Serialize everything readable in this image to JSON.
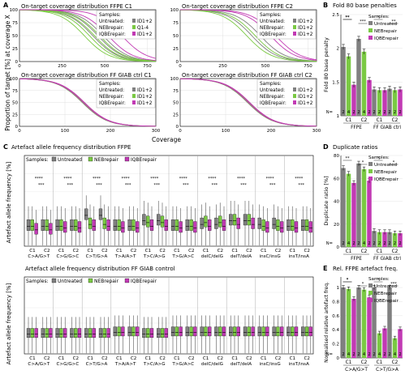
{
  "colors": {
    "untreated": "#808080",
    "nebrepair": "#7ac943",
    "iqberepair": "#c23ab4",
    "black": "#000000"
  },
  "panels": {
    "A": {
      "letter": "A",
      "ylabel": "Proportion of target [%] at coverage X",
      "xlabel": "Coverage",
      "samples_label": "Samples:",
      "legend_labels": [
        "Untreated:",
        "NEBrepair:",
        "IQBErepair:"
      ],
      "subplots": [
        {
          "title": "On-target coverage distribution FFPE C1",
          "xticks": [
            "0",
            "250",
            "500",
            "750"
          ],
          "xmax": 800,
          "legend_values": [
            "ID1+2",
            "Q1-4",
            "ID1+2"
          ],
          "series": [
            {
              "name": "Untreated",
              "color_key": "untreated",
              "median_coverage": [
                430,
                460,
                490
              ]
            },
            {
              "name": "NEBrepair",
              "color_key": "nebrepair",
              "median_coverage": [
                380,
                410,
                440,
                470
              ]
            },
            {
              "name": "IQBErepair",
              "color_key": "iqberepair",
              "median_coverage": [
                520,
                600
              ]
            }
          ]
        },
        {
          "title": "On-target coverage distribution FFPE C2",
          "xticks": [
            "0",
            "250",
            "500",
            "750"
          ],
          "xmax": 800,
          "legend_values": [
            "ID1+2",
            "ID1+2",
            "ID1+2"
          ],
          "series": [
            {
              "name": "Untreated",
              "color_key": "untreated",
              "median_coverage": [
                420,
                470
              ]
            },
            {
              "name": "NEBrepair",
              "color_key": "nebrepair",
              "median_coverage": [
                390,
                440
              ]
            },
            {
              "name": "IQBErepair",
              "color_key": "iqberepair",
              "median_coverage": [
                530,
                560
              ]
            }
          ]
        },
        {
          "title": "On-target coverage distribution FF GIAB ctrl C1",
          "xticks": [
            "0",
            "100",
            "200",
            "300"
          ],
          "xmax": 300,
          "legend_values": [
            "ID1+2",
            "ID1+2",
            "ID1+2"
          ],
          "series": [
            {
              "name": "Untreated",
              "color_key": "untreated",
              "median_coverage": [
                138,
                141
              ]
            },
            {
              "name": "NEBrepair",
              "color_key": "nebrepair",
              "median_coverage": [
                139,
                142
              ]
            },
            {
              "name": "IQBErepair",
              "color_key": "iqberepair",
              "median_coverage": [
                140,
                143
              ]
            }
          ]
        },
        {
          "title": "On-target coverage distribution FF GIAB ctrl C2",
          "xticks": [
            "0",
            "100",
            "200",
            "300"
          ],
          "xmax": 300,
          "legend_values": [
            "ID1+2",
            "ID1+2",
            "ID1+2"
          ],
          "series": [
            {
              "name": "Untreated",
              "color_key": "untreated",
              "median_coverage": [
                148,
                151
              ]
            },
            {
              "name": "NEBrepair",
              "color_key": "nebrepair",
              "median_coverage": [
                149,
                152
              ]
            },
            {
              "name": "IQBErepair",
              "color_key": "iqberepair",
              "median_coverage": [
                150,
                153
              ]
            }
          ]
        }
      ]
    },
    "B": {
      "letter": "B",
      "title": "Fold 80 base penalties",
      "ylabel": "Fold 80 base penalty"
    },
    "C": {
      "letter": "C",
      "title_top": "Artefact allele frequency distribution FFPE",
      "title_bottom": "Artefact allele frequency distribution FF GIAB control",
      "ylabel": "Artefact allele frequency [%]",
      "samples_label": "Samples:",
      "legend_labels": [
        "Untreated",
        "NEBrepair",
        "IQBErepair"
      ],
      "categories": [
        "C>A/G>T",
        "C>G/G>C",
        "C>T/G>A",
        "T>A/A>T",
        "T>C/A>G",
        "T>G/A>C",
        "delC/delG",
        "delT/delA",
        "insC/insG",
        "insT/insA"
      ],
      "replicates": [
        "C1",
        "C2"
      ]
    },
    "D": {
      "letter": "D",
      "title": "Duplicate ratios",
      "ylabel": "Duplicate ratio [%]"
    },
    "E": {
      "letter": "E",
      "title": "Rel. FFPE artefact freq.",
      "ylabel": "Normalised relative artefact freq.",
      "xcats": [
        "C>A/G>T",
        "C>T/G>A"
      ]
    },
    "legend_samples": [
      "Samples:",
      "Untreated",
      "NEBrepair",
      "IQBErepair"
    ],
    "n_label": "N=",
    "groups": [
      "FFPE",
      "FF GIAB ctrl"
    ],
    "reps": [
      "C1",
      "C2"
    ]
  },
  "chart_data": [
    {
      "type": "bar",
      "panel": "B",
      "title": "Fold 80 base penalties",
      "ylabel": "Fold 80 base penalty",
      "ylim": [
        1,
        2.5
      ],
      "yticks": [
        "1",
        "1.5",
        "2",
        "2.5"
      ],
      "categories": [
        "FFPE C1",
        "FFPE C2",
        "FF GIAB ctrl C1",
        "FF GIAB ctrl C2"
      ],
      "series": [
        {
          "name": "Untreated",
          "values": [
            2.02,
            2.14,
            1.39,
            1.4
          ]
        },
        {
          "name": "NEBrepair",
          "values": [
            1.88,
            1.95,
            1.38,
            1.38
          ]
        },
        {
          "name": "IQBErepair",
          "values": [
            1.46,
            1.53,
            1.38,
            1.39
          ]
        }
      ],
      "n": [
        [
          2,
          4,
          2
        ],
        [
          2,
          4,
          2
        ],
        [
          2,
          2,
          2
        ],
        [
          2,
          2,
          2
        ]
      ],
      "significance": [
        "**",
        "***",
        "*",
        "**",
        "**"
      ]
    },
    {
      "type": "bar",
      "panel": "D",
      "title": "Duplicate ratios",
      "ylabel": "Duplicate ratio [%]",
      "ylim": [
        0,
        80
      ],
      "yticks": [
        "0",
        "20",
        "40",
        "60",
        "80"
      ],
      "categories": [
        "FFPE C1",
        "FFPE C2",
        "FF GIAB ctrl C1",
        "FF GIAB ctrl C2"
      ],
      "series": [
        {
          "name": "Untreated",
          "values": [
            69,
            73,
            14,
            13
          ]
        },
        {
          "name": "NEBrepair",
          "values": [
            64,
            68,
            13,
            12
          ]
        },
        {
          "name": "IQBErepair",
          "values": [
            56,
            58,
            13,
            12
          ]
        }
      ],
      "n": [
        [
          2,
          4,
          2
        ],
        [
          2,
          4,
          2
        ],
        [
          2,
          2,
          2
        ],
        [
          2,
          2,
          2
        ]
      ],
      "significance": [
        "**",
        "*",
        "*",
        "*"
      ]
    },
    {
      "type": "bar",
      "panel": "E",
      "title": "Rel. FFPE artefact freq.",
      "ylabel": "Normalised relative artefact freq.",
      "ylim": [
        0,
        1.15
      ],
      "yticks": [
        "0",
        "0.2",
        "0.4",
        "0.6",
        "0.8",
        "1"
      ],
      "categories": [
        "C>A/G>T C1",
        "C>A/G>T C2",
        "C>T/G>A C1",
        "C>T/G>A C2"
      ],
      "series": [
        {
          "name": "Untreated",
          "values": [
            1.0,
            1.0,
            1.0,
            1.0
          ]
        },
        {
          "name": "NEBrepair",
          "values": [
            0.98,
            0.97,
            0.35,
            0.28
          ]
        },
        {
          "name": "IQBErepair",
          "values": [
            0.84,
            0.86,
            0.42,
            0.41
          ]
        }
      ],
      "n": [
        [
          2,
          4,
          2
        ],
        [
          2,
          4,
          2
        ],
        [
          2,
          4,
          2
        ],
        [
          2,
          4,
          2
        ]
      ],
      "significance": [
        "*",
        "*",
        "*",
        "***",
        "*"
      ]
    },
    {
      "type": "box",
      "panel": "C-top",
      "title": "Artefact allele frequency distribution FFPE",
      "ylabel": "Artefact allele frequency [%]",
      "ylim": [
        0,
        2.5
      ],
      "categories": [
        "C>A/G>T",
        "C>G/G>C",
        "C>T/G>A",
        "T>A/A>T",
        "T>C/A>G",
        "T>G/A>C",
        "delC/delG",
        "delT/delA",
        "insC/insG",
        "insT/insA"
      ],
      "medians": {
        "Untreated": [
          0.55,
          0.55,
          0.85,
          0.55,
          0.7,
          0.55,
          0.6,
          0.7,
          0.6,
          0.55
        ],
        "NEBrepair": [
          0.55,
          0.55,
          0.6,
          0.55,
          0.65,
          0.55,
          0.65,
          0.7,
          0.55,
          0.55
        ],
        "IQBErepair": [
          0.45,
          0.5,
          0.55,
          0.5,
          0.55,
          0.5,
          0.55,
          0.6,
          0.5,
          0.5
        ]
      }
    },
    {
      "type": "box",
      "panel": "C-bottom",
      "title": "Artefact allele frequency distribution FF GIAB control",
      "ylabel": "Artefact allele frequency [%]",
      "ylim": [
        0,
        2.5
      ],
      "categories": [
        "C>A/G>T",
        "C>G/G>C",
        "C>T/G>A",
        "T>A/A>T",
        "T>C/A>G",
        "T>G/A>C",
        "delC/delG",
        "delT/delA",
        "insC/insG",
        "insT/insA"
      ],
      "medians": {
        "Untreated": [
          0.65,
          0.65,
          0.65,
          0.7,
          0.65,
          0.7,
          0.7,
          0.7,
          0.7,
          0.7
        ],
        "NEBrepair": [
          0.65,
          0.65,
          0.65,
          0.7,
          0.65,
          0.7,
          0.7,
          0.7,
          0.7,
          0.7
        ],
        "IQBErepair": [
          0.65,
          0.65,
          0.65,
          0.7,
          0.65,
          0.7,
          0.7,
          0.7,
          0.7,
          0.7
        ]
      }
    }
  ]
}
